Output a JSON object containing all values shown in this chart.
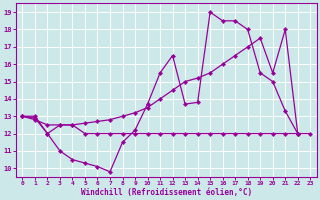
{
  "background_color": "#cce8e8",
  "grid_color": "#c8dede",
  "line_color": "#990099",
  "xlabel": "Windchill (Refroidissement éolien,°C)",
  "xlim": [
    -0.5,
    23.5
  ],
  "ylim": [
    9.5,
    19.5
  ],
  "xticks": [
    0,
    1,
    2,
    3,
    4,
    5,
    6,
    7,
    8,
    9,
    10,
    11,
    12,
    13,
    14,
    15,
    16,
    17,
    18,
    19,
    20,
    21,
    22,
    23
  ],
  "yticks": [
    10,
    11,
    12,
    13,
    14,
    15,
    16,
    17,
    18,
    19
  ],
  "series": [
    {
      "x": [
        0,
        1,
        2,
        3,
        4,
        5,
        6,
        7,
        8,
        9,
        10,
        11,
        12,
        13,
        14,
        15,
        16,
        17,
        18,
        19,
        20,
        21,
        22
      ],
      "y": [
        13,
        13,
        12,
        11,
        10.5,
        10.3,
        10.1,
        9.8,
        11.5,
        12.2,
        13.7,
        15.5,
        16.5,
        13.7,
        13.8,
        19.0,
        18.5,
        18.5,
        18.0,
        15.5,
        15.0,
        13.3,
        12.0
      ]
    },
    {
      "x": [
        0,
        1,
        2,
        3,
        4,
        5,
        6,
        7,
        8,
        9,
        10,
        11,
        12,
        13,
        14,
        15,
        16,
        17,
        18,
        19,
        20,
        21,
        22
      ],
      "y": [
        13,
        12.8,
        12.5,
        12.5,
        12.5,
        12.6,
        12.7,
        12.8,
        13.0,
        13.2,
        13.5,
        14.0,
        14.5,
        15.0,
        15.2,
        15.5,
        16.0,
        16.5,
        17.0,
        17.5,
        15.5,
        18.0,
        12.0
      ]
    },
    {
      "x": [
        0,
        1,
        2,
        3,
        4,
        5,
        6,
        7,
        8,
        9,
        10,
        11,
        12,
        13,
        14,
        15,
        16,
        17,
        18,
        19,
        20,
        21,
        22,
        23
      ],
      "y": [
        13,
        12.9,
        12.0,
        12.5,
        12.5,
        12.0,
        12.0,
        12.0,
        12.0,
        12.0,
        12.0,
        12.0,
        12.0,
        12.0,
        12.0,
        12.0,
        12.0,
        12.0,
        12.0,
        12.0,
        12.0,
        12.0,
        12.0,
        12.0
      ]
    }
  ]
}
